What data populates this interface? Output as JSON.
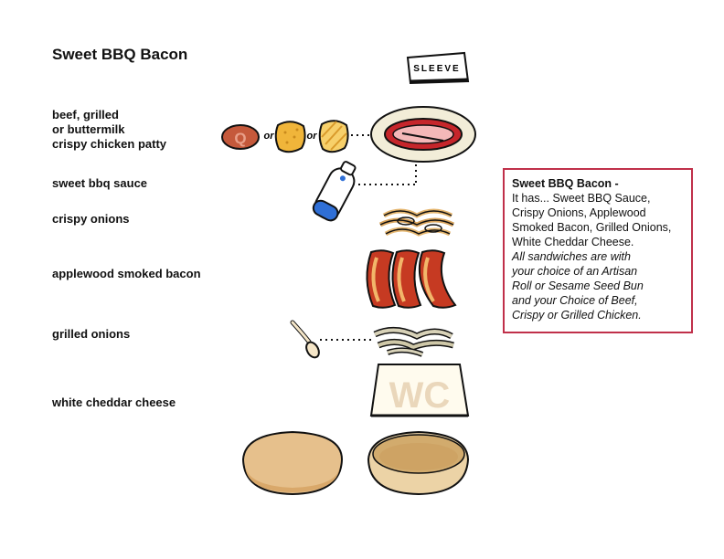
{
  "title": "Sweet BBQ Bacon",
  "sleeve_label": "SLEEVE",
  "labels": {
    "protein": "beef, grilled\nor buttermilk\ncrispy chicken patty",
    "sauce": "sweet bbq sauce",
    "onions": "crispy onions",
    "bacon": "applewood smoked bacon",
    "grilled_onions": "grilled onions",
    "cheese": "white cheddar cheese"
  },
  "patty_options": {
    "q_letter": "Q",
    "or_1": "or",
    "or_2": "or"
  },
  "cheese_letters": "WC",
  "info": {
    "heading": "Sweet BBQ Bacon -",
    "lines": [
      "It has... Sweet BBQ Sauce,",
      "Crispy Onions, Applewood",
      "Smoked Bacon, Grilled Onions,",
      "White Cheddar Cheese."
    ],
    "italic_lines": [
      "All sandwiches are with",
      "your choice of an Artisan",
      "Roll or Sesame Seed Bun",
      "and your Choice of Beef,",
      "Crispy or Grilled Chicken."
    ]
  },
  "colors": {
    "accent_border": "#c0304a",
    "bacon_red": "#c63a22",
    "bun": "#e6c08c",
    "cheese_letters": "#ead7bb",
    "sauce_blue": "#2f6fd6"
  }
}
